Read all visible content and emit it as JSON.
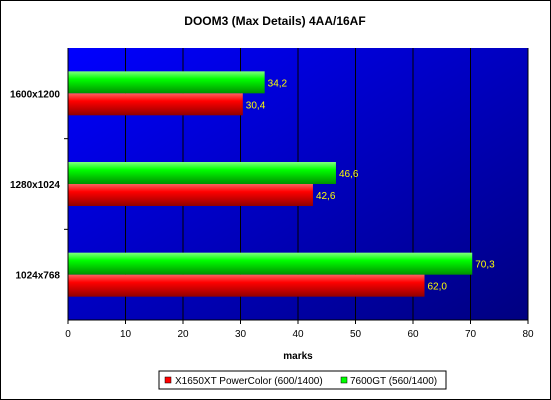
{
  "chart_data": {
    "type": "bar",
    "orientation": "horizontal",
    "title": "DOOM3 (Max Details) 4AA/16AF",
    "xlabel": "marks",
    "ylabel": "",
    "categories": [
      "1600x1200",
      "1280x1024",
      "1024x768"
    ],
    "series": [
      {
        "name": "X1650XT PowerColor (600/1400)",
        "values": [
          30.4,
          42.6,
          62.0
        ],
        "labels": [
          "30,4",
          "42,6",
          "62,0"
        ],
        "color": "#ff0000"
      },
      {
        "name": "7600GT (560/1400)",
        "values": [
          34.2,
          46.6,
          70.3
        ],
        "labels": [
          "34,2",
          "46,6",
          "70,3"
        ],
        "color": "#00ff00"
      }
    ],
    "xlim": [
      0,
      80
    ],
    "xticks": [
      "0",
      "10",
      "20",
      "30",
      "40",
      "50",
      "60",
      "70",
      "80"
    ],
    "grid": true,
    "legend": "bottom",
    "plot_background": "#0000cc"
  }
}
